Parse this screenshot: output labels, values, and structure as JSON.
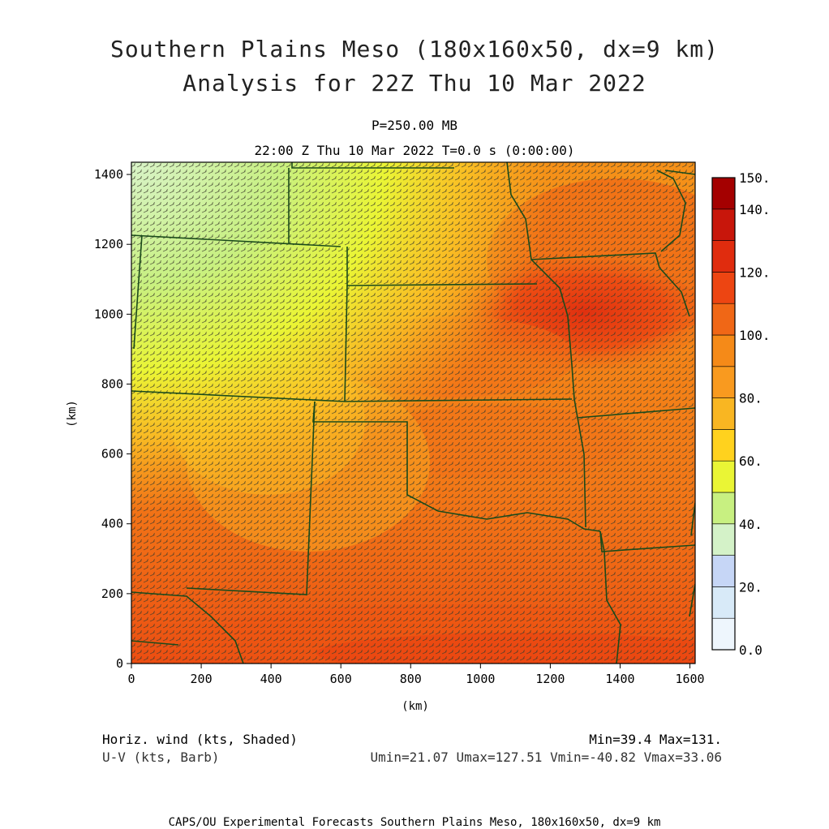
{
  "title_line1": "Southern Plains Meso (180x160x50, dx=9 km)",
  "title_line2": "Analysis for 22Z Thu 10 Mar 2022",
  "level_label": "P=250.00 MB",
  "time_label": "22:00 Z Thu 10 Mar 2022   T=0.0 s (0:00:00)",
  "xlabel": "(km)",
  "ylabel": "(km)",
  "x_ticks": [
    "0",
    "200",
    "400",
    "600",
    "800",
    "1000",
    "1200",
    "1400",
    "1600"
  ],
  "y_ticks": [
    "0",
    "200",
    "400",
    "600",
    "800",
    "1000",
    "1200",
    "1400"
  ],
  "colorbar": {
    "labels": [
      "0.0",
      "20.",
      "40.",
      "60.",
      "80.",
      "100.",
      "120.",
      "140.",
      "150."
    ],
    "colors": [
      "#eef6fd",
      "#d8eaf8",
      "#c6d6f6",
      "#d4f2c8",
      "#c8f081",
      "#eaf535",
      "#ffd21e",
      "#f9b622",
      "#f99a1f",
      "#f58a18",
      "#f06716",
      "#ed4512",
      "#e02c0e",
      "#c8160b",
      "#a40000"
    ]
  },
  "field_colors": {
    "low": "#c8f081",
    "mid_low": "#eaf535",
    "mid": "#f9b622",
    "mid_high": "#f58a18",
    "high": "#f06716",
    "max": "#e23d10"
  },
  "boundary_color": "#1a4a1a",
  "legend_left_line1": "Horiz. wind (kts, Shaded)",
  "legend_left_line2": "U-V (kts, Barb)",
  "legend_right_line1": "Min=39.4 Max=131.",
  "legend_right_line2": "Umin=21.07 Umax=127.51 Vmin=-40.82 Vmax=33.06",
  "footer": "CAPS/OU Experimental Forecasts  Southern Plains Meso, 180x160x50, dx=9 km"
}
